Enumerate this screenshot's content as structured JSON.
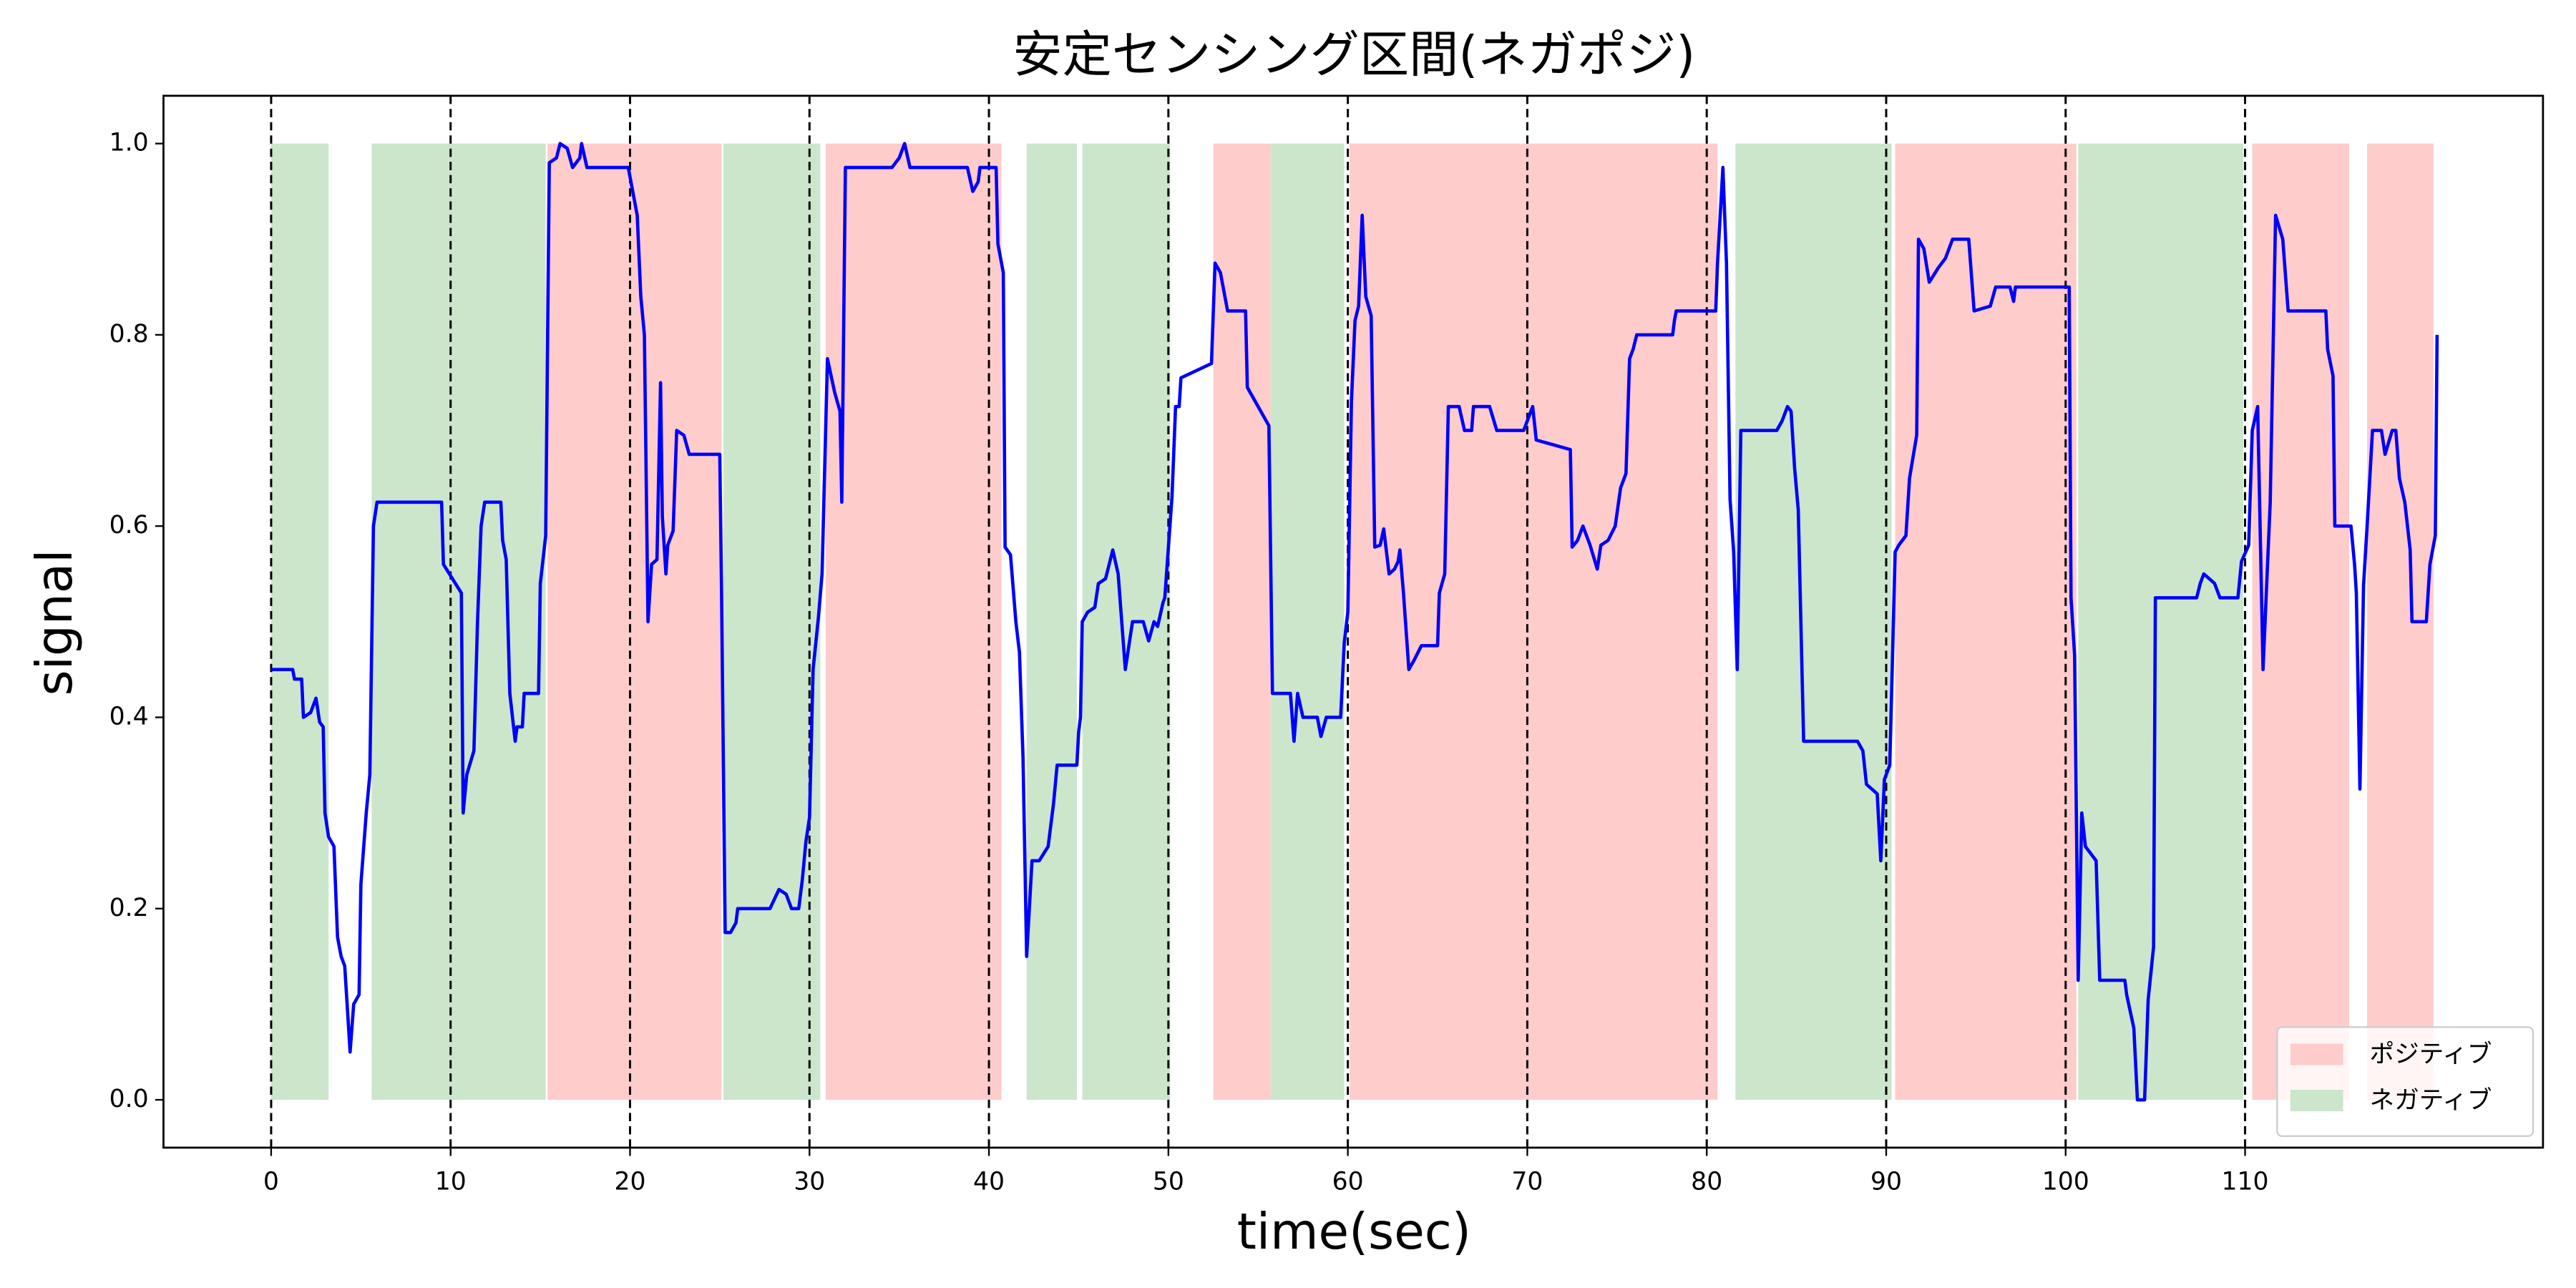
{
  "chart_data": {
    "type": "line",
    "title": "安定センシング区間(ネガポジ)",
    "xlabel": "time(sec)",
    "ylabel": "signal",
    "color": "#0000ff",
    "x": [
      0,
      1.2,
      1.3,
      1.7,
      1.8,
      2.2,
      2.5,
      2.7,
      2.9,
      3.0,
      3.2,
      3.5,
      3.7,
      3.9,
      4.1,
      4.4,
      4.6,
      4.9,
      5.0,
      5.3,
      5.5,
      5.7,
      5.9,
      9.5,
      9.6,
      10.6,
      10.7,
      10.9,
      11.3,
      11.5,
      11.7,
      11.9,
      12.8,
      12.9,
      13.1,
      13.3,
      13.6,
      13.7,
      14.0,
      14.1,
      14.9,
      15.0,
      15.3,
      15.5,
      15.9,
      16.1,
      16.5,
      16.8,
      17.2,
      17.3,
      17.6,
      19.9,
      20.1,
      20.4,
      20.6,
      20.8,
      21.0,
      21.2,
      21.5,
      21.7,
      21.8,
      22.0,
      22.1,
      22.4,
      22.6,
      23.0,
      23.3,
      25.0,
      25.1,
      25.3,
      25.6,
      25.9,
      26.0,
      27.8,
      28.3,
      28.7,
      29.0,
      29.4,
      29.6,
      29.8,
      30.0,
      30.2,
      30.5,
      30.7,
      31.0,
      31.4,
      31.7,
      31.8,
      32.0,
      34.6,
      34.8,
      35.0,
      35.3,
      35.6,
      38.8,
      39.1,
      39.4,
      39.5,
      40.4,
      40.5,
      40.8,
      40.9,
      41.2,
      41.5,
      41.7,
      41.9,
      42.1,
      42.4,
      42.8,
      43.3,
      43.4,
      43.6,
      43.8,
      44.9,
      45.0,
      45.1,
      45.2,
      45.5,
      45.9,
      46.1,
      46.5,
      46.9,
      47.2,
      47.4,
      47.6,
      48.0,
      48.6,
      48.9,
      49.2,
      49.4,
      49.7,
      49.8,
      50.2,
      50.4,
      50.6,
      50.7,
      52.4,
      52.6,
      52.9,
      53.3,
      54.3,
      54.4,
      55.6,
      55.8,
      56.8,
      57.0,
      57.2,
      57.5,
      58.3,
      58.5,
      58.8,
      59.6,
      59.8,
      60.0,
      60.2,
      60.4,
      60.6,
      60.8,
      61.0,
      61.3,
      61.5,
      61.8,
      62.0,
      62.3,
      62.6,
      62.8,
      62.9,
      63.1,
      63.4,
      63.7,
      64.1,
      65.0,
      65.1,
      65.4,
      65.6,
      66.2,
      66.5,
      66.9,
      67.0,
      67.9,
      68.3,
      69.8,
      70.1,
      70.3,
      70.5,
      72.4,
      72.5,
      72.8,
      73.1,
      73.5,
      73.9,
      74.1,
      74.5,
      74.9,
      75.2,
      75.5,
      75.7,
      75.9,
      76.1,
      78.1,
      78.2,
      78.3,
      80.5,
      80.6,
      80.9,
      81.1,
      81.3,
      81.5,
      81.7,
      81.9,
      83.9,
      84.2,
      84.5,
      84.7,
      84.9,
      85.1,
      85.4,
      88.4,
      88.7,
      88.9,
      89.5,
      89.7,
      89.9,
      90.2,
      90.5,
      90.7,
      91.1,
      91.3,
      91.7,
      91.8,
      92.1,
      92.4,
      92.9,
      93.3,
      93.7,
      94.6,
      94.9,
      95.8,
      96.1,
      96.9,
      97.1,
      97.2,
      100.2,
      100.3,
      100.5,
      100.7,
      100.9,
      101.1,
      101.7,
      101.9,
      103.3,
      103.4,
      103.8,
      104.0,
      104.4,
      104.6,
      104.9,
      105.0,
      107.3,
      107.5,
      107.7,
      108.3,
      108.6,
      109.6,
      109.8,
      110.2,
      110.4,
      110.7,
      111.0,
      111.4,
      111.7,
      112.1,
      112.4,
      114.5,
      114.6,
      114.9,
      115.0,
      115.9,
      116.1,
      116.2,
      116.4,
      116.6,
      116.8,
      117.1,
      117.6,
      117.8,
      118.2,
      118.4,
      118.6,
      118.9,
      119.2,
      119.3,
      120.1,
      120.3,
      120.6,
      120.7
    ],
    "values": [
      0.45,
      0.45,
      0.44,
      0.44,
      0.4,
      0.405,
      0.42,
      0.395,
      0.39,
      0.3,
      0.275,
      0.265,
      0.17,
      0.15,
      0.14,
      0.05,
      0.1,
      0.11,
      0.225,
      0.3,
      0.34,
      0.6,
      0.625,
      0.625,
      0.56,
      0.53,
      0.3,
      0.34,
      0.365,
      0.5,
      0.6,
      0.625,
      0.625,
      0.585,
      0.565,
      0.425,
      0.375,
      0.39,
      0.39,
      0.425,
      0.425,
      0.54,
      0.59,
      0.98,
      0.985,
      1.0,
      0.995,
      0.975,
      0.985,
      1.0,
      0.975,
      0.975,
      0.955,
      0.925,
      0.84,
      0.8,
      0.5,
      0.56,
      0.565,
      0.75,
      0.61,
      0.55,
      0.58,
      0.595,
      0.7,
      0.695,
      0.675,
      0.675,
      0.53,
      0.175,
      0.175,
      0.185,
      0.2,
      0.2,
      0.22,
      0.215,
      0.2,
      0.2,
      0.23,
      0.27,
      0.295,
      0.45,
      0.505,
      0.55,
      0.775,
      0.74,
      0.72,
      0.625,
      0.975,
      0.975,
      0.98,
      0.985,
      1.0,
      0.975,
      0.975,
      0.95,
      0.96,
      0.975,
      0.975,
      0.895,
      0.865,
      0.578,
      0.57,
      0.5,
      0.468,
      0.357,
      0.15,
      0.25,
      0.25,
      0.265,
      0.28,
      0.31,
      0.35,
      0.35,
      0.385,
      0.4,
      0.5,
      0.51,
      0.515,
      0.54,
      0.545,
      0.575,
      0.55,
      0.5,
      0.45,
      0.5,
      0.5,
      0.48,
      0.5,
      0.495,
      0.52,
      0.525,
      0.63,
      0.725,
      0.725,
      0.755,
      0.77,
      0.875,
      0.865,
      0.825,
      0.825,
      0.745,
      0.705,
      0.425,
      0.425,
      0.375,
      0.425,
      0.4,
      0.4,
      0.38,
      0.4,
      0.4,
      0.478,
      0.51,
      0.73,
      0.815,
      0.83,
      0.925,
      0.84,
      0.82,
      0.578,
      0.58,
      0.597,
      0.55,
      0.555,
      0.563,
      0.575,
      0.53,
      0.45,
      0.46,
      0.475,
      0.475,
      0.53,
      0.55,
      0.725,
      0.725,
      0.7,
      0.7,
      0.725,
      0.725,
      0.7,
      0.7,
      0.715,
      0.725,
      0.69,
      0.68,
      0.578,
      0.585,
      0.6,
      0.58,
      0.555,
      0.58,
      0.585,
      0.6,
      0.64,
      0.655,
      0.775,
      0.785,
      0.8,
      0.8,
      0.815,
      0.825,
      0.825,
      0.875,
      0.975,
      0.875,
      0.628,
      0.573,
      0.45,
      0.7,
      0.7,
      0.71,
      0.725,
      0.72,
      0.66,
      0.617,
      0.375,
      0.375,
      0.365,
      0.33,
      0.32,
      0.25,
      0.335,
      0.35,
      0.573,
      0.58,
      0.59,
      0.65,
      0.695,
      0.9,
      0.89,
      0.855,
      0.87,
      0.88,
      0.9,
      0.9,
      0.825,
      0.83,
      0.85,
      0.85,
      0.835,
      0.85,
      0.85,
      0.525,
      0.465,
      0.125,
      0.3,
      0.265,
      0.25,
      0.125,
      0.125,
      0.11,
      0.075,
      0.0,
      0.0,
      0.105,
      0.16,
      0.525,
      0.525,
      0.54,
      0.55,
      0.54,
      0.525,
      0.525,
      0.563,
      0.58,
      0.7,
      0.725,
      0.45,
      0.625,
      0.925,
      0.9,
      0.825,
      0.825,
      0.785,
      0.757,
      0.6,
      0.6,
      0.56,
      0.53,
      0.325,
      0.538,
      0.6,
      0.7,
      0.7,
      0.675,
      0.7,
      0.7,
      0.65,
      0.625,
      0.575,
      0.5,
      0.5,
      0.56,
      0.59,
      0.8
    ],
    "spans": [
      {
        "name": "ポジティブ",
        "color": "#ffcccc",
        "ranges": [
          [
            15.4,
            25.1
          ],
          [
            30.9,
            40.7
          ],
          [
            52.5,
            55.7
          ],
          [
            60.1,
            80.6
          ],
          [
            90.5,
            100.6
          ],
          [
            110.4,
            115.8
          ],
          [
            116.8,
            120.5
          ]
        ]
      },
      {
        "name": "ネガティブ",
        "color": "#cce6cc",
        "ranges": [
          [
            0,
            3.2
          ],
          [
            5.6,
            15.3
          ],
          [
            25.2,
            30.6
          ],
          [
            42.1,
            44.9
          ],
          [
            45.2,
            50.1
          ],
          [
            55.7,
            59.8
          ],
          [
            81.6,
            90.3
          ],
          [
            100.7,
            109.9
          ]
        ]
      }
    ],
    "span_ylim": [
      0,
      1
    ],
    "xlim": [
      -6,
      126.6
    ],
    "ylim": [
      -0.05,
      1.05
    ],
    "xticks": [
      0,
      10,
      20,
      30,
      40,
      50,
      60,
      70,
      80,
      90,
      100,
      110
    ],
    "yticks": [
      {
        "value": 0,
        "label": "0.0"
      },
      {
        "value": 0.2,
        "label": "0.2"
      },
      {
        "value": 0.4,
        "label": "0.4"
      },
      {
        "value": 0.6,
        "label": "0.6"
      },
      {
        "value": 0.8,
        "label": "0.8"
      },
      {
        "value": 1,
        "label": "1.0"
      }
    ],
    "dashed_xgrid": true,
    "legend": "lower right"
  }
}
